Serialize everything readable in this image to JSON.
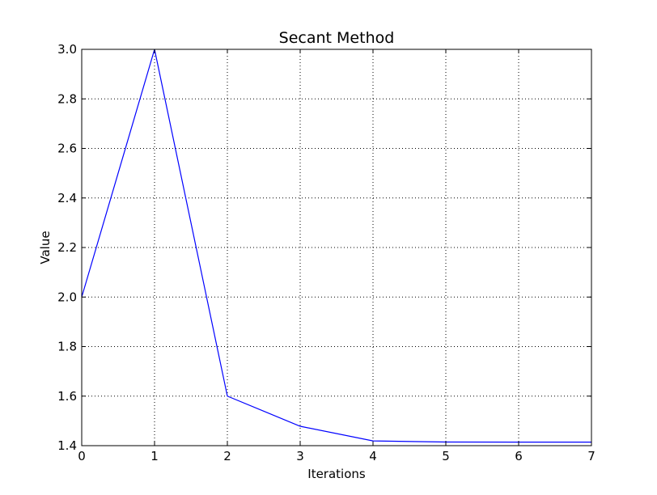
{
  "chart_data": {
    "type": "line",
    "title": "Secant Method",
    "xlabel": "Iterations",
    "ylabel": "Value",
    "xlim": [
      0,
      7
    ],
    "ylim": [
      1.4,
      3.0
    ],
    "grid": true,
    "x_ticks": [
      0,
      1,
      2,
      3,
      4,
      5,
      6,
      7
    ],
    "x_tick_labels": [
      "0",
      "1",
      "2",
      "3",
      "4",
      "5",
      "6",
      "7"
    ],
    "y_ticks": [
      1.4,
      1.6,
      1.8,
      2.0,
      2.2,
      2.4,
      2.6,
      2.8,
      3.0
    ],
    "y_tick_labels": [
      "1.4",
      "1.6",
      "1.8",
      "2.0",
      "2.2",
      "2.4",
      "2.6",
      "2.8",
      "3.0"
    ],
    "series": [
      {
        "color": "#0000ff",
        "x": [
          0,
          1,
          2,
          3,
          4,
          5,
          6,
          7
        ],
        "values": [
          2.0,
          3.0,
          1.6,
          1.4783,
          1.4193,
          1.4146,
          1.4142,
          1.4142
        ]
      }
    ]
  }
}
